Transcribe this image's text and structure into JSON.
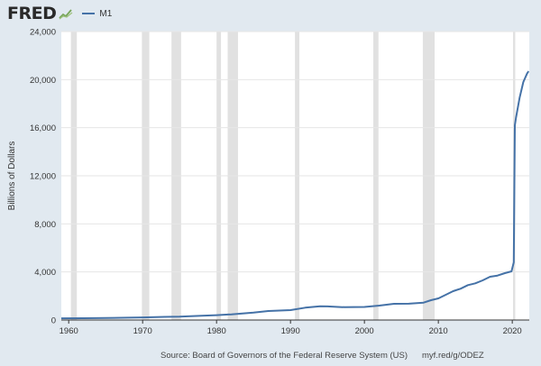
{
  "header": {
    "logo_text": "FRED",
    "logo_icon": "line-graph-icon",
    "legend_label": "M1",
    "legend_color": "#4572a7"
  },
  "footer": {
    "source": "Source: Board of Governors of the Federal Reserve System (US)",
    "shortlink": "myf.red/g/ODEZ"
  },
  "chart_data": {
    "type": "line",
    "title": "",
    "xlabel": "",
    "ylabel": "Billions of Dollars",
    "xlim": [
      1959,
      2022.3
    ],
    "ylim": [
      0,
      24000
    ],
    "y_ticks": [
      0,
      4000,
      8000,
      12000,
      16000,
      20000,
      24000
    ],
    "y_tick_labels": [
      "0",
      "4,000",
      "8,000",
      "12,000",
      "16,000",
      "20,000",
      "24,000"
    ],
    "x_ticks": [
      1960,
      1970,
      1980,
      1990,
      2000,
      2010,
      2020
    ],
    "x_tick_labels": [
      "1960",
      "1970",
      "1980",
      "1990",
      "2000",
      "2010",
      "2020"
    ],
    "grid": "horizontal",
    "legend": "top-left",
    "recession_shading": [
      [
        1960.3,
        1961.1
      ],
      [
        1969.9,
        1970.9
      ],
      [
        1973.9,
        1975.2
      ],
      [
        1980.0,
        1980.6
      ],
      [
        1981.5,
        1982.9
      ],
      [
        1990.6,
        1991.2
      ],
      [
        2001.2,
        2001.9
      ],
      [
        2007.9,
        2009.5
      ],
      [
        2020.1,
        2020.4
      ]
    ],
    "series": [
      {
        "name": "M1",
        "color": "#4572a7",
        "x": [
          1959,
          1962,
          1965,
          1968,
          1970,
          1973,
          1975,
          1978,
          1980,
          1982,
          1985,
          1987,
          1990,
          1992,
          1994,
          1995,
          1997,
          2000,
          2002,
          2004,
          2006,
          2008,
          2009,
          2010,
          2011,
          2012,
          2013,
          2014,
          2015,
          2016,
          2017,
          2018,
          2019,
          2019.9,
          2020.2,
          2020.35,
          2020.5,
          2021,
          2021.5,
          2022,
          2022.2
        ],
        "y": [
          140,
          148,
          168,
          196,
          214,
          263,
          288,
          357,
          408,
          474,
          620,
          750,
          825,
          1025,
          1150,
          1130,
          1075,
          1090,
          1200,
          1350,
          1360,
          1450,
          1650,
          1800,
          2100,
          2400,
          2600,
          2900,
          3050,
          3300,
          3600,
          3700,
          3900,
          4050,
          4800,
          16200,
          16800,
          18500,
          19800,
          20500,
          20700
        ]
      }
    ]
  }
}
